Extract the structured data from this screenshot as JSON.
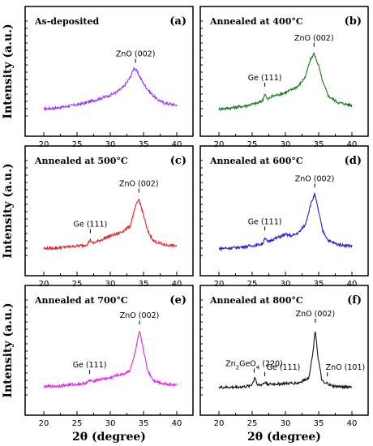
{
  "chart_data": [
    {
      "type": "line",
      "panel": "(a)",
      "title": "As-deposited",
      "color": "#9933ff",
      "xlim": [
        20,
        40
      ],
      "xticks": [
        20,
        25,
        30,
        35,
        40
      ],
      "xlabel": "",
      "ylabel": "Intensity (a.u.)",
      "series": [
        {
          "x": [
            20,
            22,
            24,
            26,
            28,
            30,
            31,
            32,
            33,
            33.6,
            34.2,
            35,
            36,
            37,
            38,
            40
          ],
          "y": [
            0.02,
            0.04,
            0.07,
            0.11,
            0.17,
            0.24,
            0.29,
            0.37,
            0.52,
            0.68,
            0.58,
            0.42,
            0.28,
            0.18,
            0.12,
            0.08
          ]
        }
      ],
      "peaks": [
        {
          "label": "ZnO (002)",
          "x": 33.8
        }
      ]
    },
    {
      "type": "line",
      "panel": "(b)",
      "title": "Annealed at 400°C",
      "color": "#1a7a1a",
      "xlim": [
        20,
        40
      ],
      "xticks": [
        20,
        25,
        30,
        35,
        40
      ],
      "xlabel": "",
      "ylabel": "",
      "series": [
        {
          "x": [
            20,
            22,
            24,
            26,
            26.6,
            26.9,
            27.3,
            28,
            30,
            31,
            32,
            33,
            33.7,
            34.3,
            35,
            35.6,
            36.5,
            38,
            40
          ],
          "y": [
            0.02,
            0.04,
            0.07,
            0.12,
            0.16,
            0.27,
            0.17,
            0.22,
            0.28,
            0.33,
            0.39,
            0.53,
            0.78,
            0.9,
            0.7,
            0.45,
            0.22,
            0.12,
            0.08
          ]
        }
      ],
      "peaks": [
        {
          "label": "Ge (111)",
          "x": 26.9
        },
        {
          "label": "ZnO (002)",
          "x": 34.3
        }
      ]
    },
    {
      "type": "line",
      "panel": "(c)",
      "title": "Annealed at 500°C",
      "color": "#e52222",
      "xlim": [
        20,
        40
      ],
      "xticks": [
        20,
        25,
        30,
        35,
        40
      ],
      "xlabel": "",
      "ylabel": "Intensity (a.u.)",
      "series": [
        {
          "x": [
            20,
            22,
            24,
            26,
            26.6,
            27,
            27.4,
            28,
            30,
            31,
            32,
            33,
            33.8,
            34.3,
            35,
            35.6,
            36.5,
            38,
            40
          ],
          "y": [
            0.02,
            0.03,
            0.05,
            0.07,
            0.09,
            0.16,
            0.1,
            0.13,
            0.22,
            0.25,
            0.3,
            0.38,
            0.68,
            0.8,
            0.55,
            0.3,
            0.14,
            0.08,
            0.06
          ]
        }
      ],
      "peaks": [
        {
          "label": "Ge (111)",
          "x": 27
        },
        {
          "label": "ZnO (002)",
          "x": 34.3
        }
      ]
    },
    {
      "type": "line",
      "panel": "(d)",
      "title": "Annealed at 600°C",
      "color": "#1f1fdd",
      "xlim": [
        20,
        40
      ],
      "xticks": [
        20,
        25,
        30,
        35,
        40
      ],
      "xlabel": "",
      "ylabel": "",
      "series": [
        {
          "x": [
            20,
            22,
            24,
            26,
            26.6,
            26.9,
            27.3,
            28,
            29,
            30,
            31,
            32,
            33,
            33.8,
            34.4,
            35,
            35.6,
            36.5,
            38,
            40
          ],
          "y": [
            0.02,
            0.03,
            0.05,
            0.08,
            0.1,
            0.2,
            0.12,
            0.16,
            0.2,
            0.24,
            0.22,
            0.27,
            0.4,
            0.72,
            0.88,
            0.6,
            0.3,
            0.14,
            0.08,
            0.06
          ]
        }
      ],
      "peaks": [
        {
          "label": "Ge (111)",
          "x": 26.9
        },
        {
          "label": "ZnO (002)",
          "x": 34.4
        }
      ]
    },
    {
      "type": "line",
      "panel": "(e)",
      "title": "Annealed at 700°C",
      "color": "#e61ee6",
      "xlim": [
        20,
        40
      ],
      "xticks": [
        20,
        25,
        30,
        35,
        40
      ],
      "xlabel": "2θ (degree)",
      "ylabel": "Intensity (a.u.)",
      "series": [
        {
          "x": [
            20,
            22,
            24,
            26,
            26.6,
            26.9,
            27.3,
            28,
            30,
            31,
            32,
            33,
            33.8,
            34.4,
            35,
            35.6,
            36.5,
            38,
            40
          ],
          "y": [
            0.04,
            0.05,
            0.07,
            0.09,
            0.11,
            0.14,
            0.12,
            0.15,
            0.18,
            0.22,
            0.24,
            0.3,
            0.6,
            0.92,
            0.62,
            0.3,
            0.14,
            0.09,
            0.07
          ]
        }
      ],
      "peaks": [
        {
          "label": "Ge (111)",
          "x": 26.9
        },
        {
          "label": "ZnO (002)",
          "x": 34.4
        }
      ]
    },
    {
      "type": "line",
      "panel": "(f)",
      "title": "Annealed at 800°C",
      "color": "#111111",
      "xlim": [
        20,
        40
      ],
      "xticks": [
        20,
        25,
        30,
        35,
        40
      ],
      "xlabel": "2θ (degree)",
      "ylabel": "",
      "series": [
        {
          "x": [
            20,
            22,
            24,
            24.8,
            25.2,
            25.4,
            25.7,
            26.2,
            26.7,
            27,
            27.4,
            28,
            30,
            32,
            33.5,
            34.1,
            34.5,
            34.9,
            35.5,
            36,
            36.3,
            36.6,
            37,
            38,
            40
          ],
          "y": [
            0.03,
            0.03,
            0.04,
            0.06,
            0.12,
            0.2,
            0.09,
            0.06,
            0.09,
            0.11,
            0.08,
            0.08,
            0.09,
            0.1,
            0.18,
            0.55,
            0.95,
            0.5,
            0.13,
            0.08,
            0.1,
            0.07,
            0.05,
            0.04,
            0.04
          ]
        }
      ],
      "peaks": [
        {
          "label": "Zn2GeO4 (220)",
          "x": 25.3
        },
        {
          "label": "Ge (111)",
          "x": 26.9
        },
        {
          "label": "ZnO (002)",
          "x": 34.5
        },
        {
          "label": "ZnO (101)",
          "x": 36.3
        }
      ]
    }
  ]
}
